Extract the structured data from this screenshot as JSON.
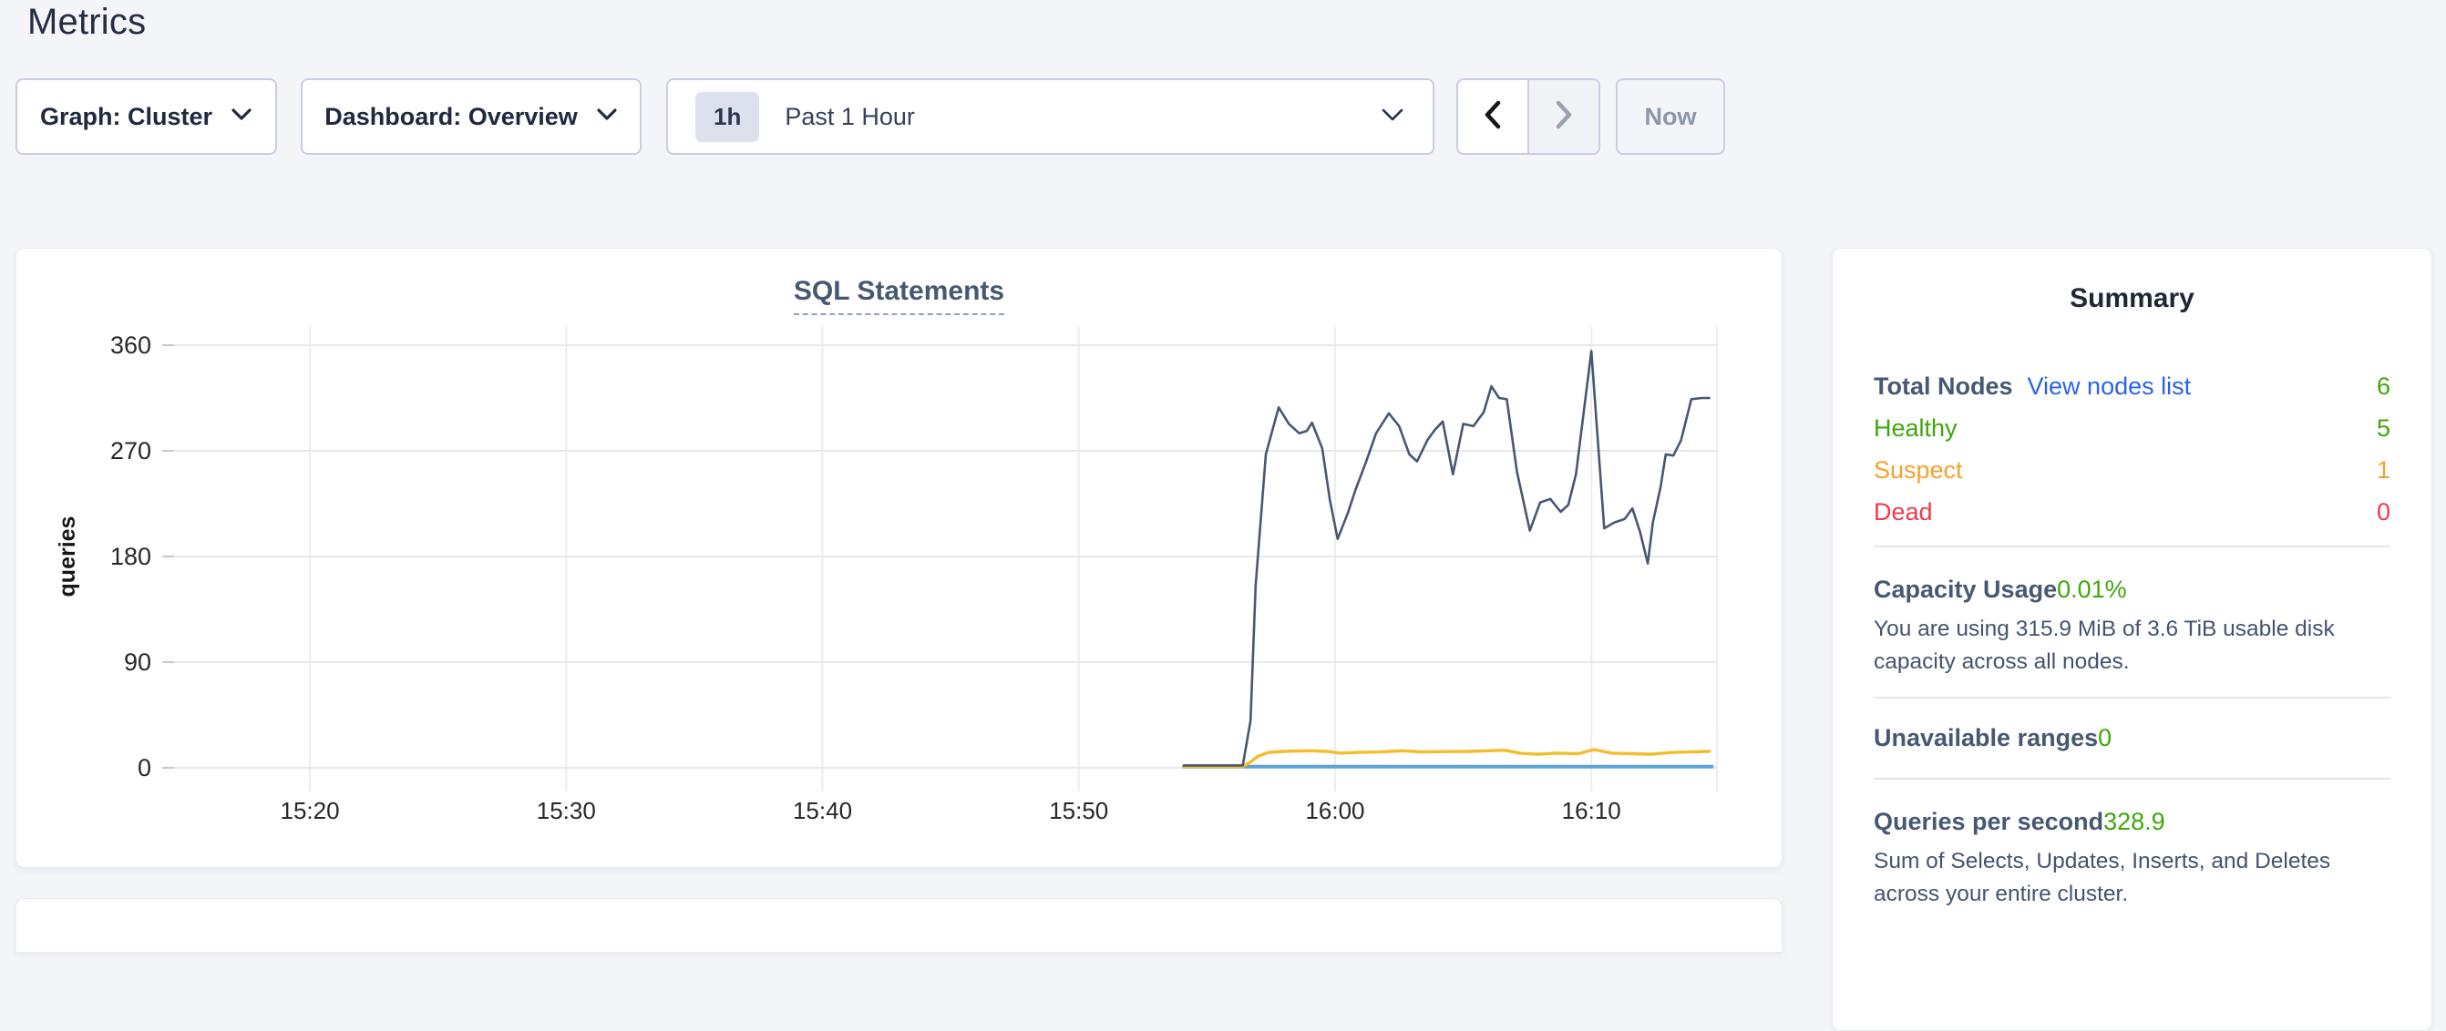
{
  "page": {
    "title": "Metrics"
  },
  "controls": {
    "graph_dropdown": {
      "label": "Graph: Cluster"
    },
    "dashboard_dropdown": {
      "label": "Dashboard: Overview"
    },
    "time_range": {
      "badge": "1h",
      "label": "Past 1 Hour"
    },
    "now_button": {
      "label": "Now"
    }
  },
  "chart_data": {
    "type": "line",
    "title": "SQL Statements",
    "ylabel": "queries",
    "xlabel": "",
    "ylim": [
      0,
      360
    ],
    "yticks": [
      0,
      90,
      180,
      270,
      360
    ],
    "x_domain_minutes_from_1515": [
      -0.3,
      59.9
    ],
    "xticks": [
      {
        "m": 5,
        "label": "15:20"
      },
      {
        "m": 15,
        "label": "15:30"
      },
      {
        "m": 25,
        "label": "15:40"
      },
      {
        "m": 35,
        "label": "15:50"
      },
      {
        "m": 45,
        "label": "16:00"
      },
      {
        "m": 55,
        "label": "16:10"
      }
    ],
    "grid": true,
    "legend": "none",
    "series": [
      {
        "name": "light-blue-flat",
        "color": "#5ca3d7",
        "width": 4,
        "points": [
          [
            39.1,
            1
          ],
          [
            59.7,
            1
          ]
        ]
      },
      {
        "name": "yellow",
        "color": "#f3bd2c",
        "width": 3.4,
        "points": [
          [
            39.1,
            1
          ],
          [
            41.4,
            1
          ],
          [
            41.7,
            5
          ],
          [
            42.0,
            10
          ],
          [
            42.4,
            13
          ],
          [
            43.0,
            14
          ],
          [
            44.0,
            14.5
          ],
          [
            44.7,
            14
          ],
          [
            45.2,
            12.5
          ],
          [
            45.8,
            13
          ],
          [
            46.8,
            13.5
          ],
          [
            47.6,
            14.5
          ],
          [
            48.4,
            13.5
          ],
          [
            49.2,
            13.8
          ],
          [
            50.2,
            14
          ],
          [
            51.0,
            14.5
          ],
          [
            51.6,
            15
          ],
          [
            52.2,
            12.5
          ],
          [
            52.9,
            11.5
          ],
          [
            53.6,
            12.5
          ],
          [
            54.5,
            12
          ],
          [
            55.1,
            15.5
          ],
          [
            55.8,
            12.5
          ],
          [
            56.6,
            12
          ],
          [
            57.3,
            11.5
          ],
          [
            58.1,
            13
          ],
          [
            58.9,
            13.5
          ],
          [
            59.6,
            14
          ]
        ]
      },
      {
        "name": "dark-blue",
        "color": "#475872",
        "width": 2.6,
        "points": [
          [
            39.1,
            2
          ],
          [
            41.4,
            2
          ],
          [
            41.7,
            40
          ],
          [
            41.9,
            155
          ],
          [
            42.3,
            267
          ],
          [
            42.8,
            307
          ],
          [
            43.2,
            293
          ],
          [
            43.6,
            285
          ],
          [
            43.9,
            287
          ],
          [
            44.1,
            294
          ],
          [
            44.5,
            272
          ],
          [
            44.8,
            228
          ],
          [
            45.1,
            195
          ],
          [
            45.5,
            217
          ],
          [
            45.8,
            237
          ],
          [
            46.2,
            260
          ],
          [
            46.6,
            285
          ],
          [
            47.1,
            302
          ],
          [
            47.5,
            291
          ],
          [
            47.9,
            267
          ],
          [
            48.2,
            261
          ],
          [
            48.6,
            279
          ],
          [
            48.9,
            288
          ],
          [
            49.2,
            295
          ],
          [
            49.6,
            250
          ],
          [
            50.0,
            293
          ],
          [
            50.4,
            291
          ],
          [
            50.8,
            303
          ],
          [
            51.1,
            325
          ],
          [
            51.4,
            315
          ],
          [
            51.7,
            314
          ],
          [
            52.1,
            252
          ],
          [
            52.6,
            202
          ],
          [
            53.0,
            226
          ],
          [
            53.4,
            229
          ],
          [
            53.8,
            218
          ],
          [
            54.1,
            224
          ],
          [
            54.4,
            250
          ],
          [
            55.0,
            355
          ],
          [
            55.5,
            204
          ],
          [
            55.9,
            209
          ],
          [
            56.3,
            212
          ],
          [
            56.6,
            221
          ],
          [
            56.9,
            201
          ],
          [
            57.2,
            174
          ],
          [
            57.4,
            209
          ],
          [
            57.7,
            239
          ],
          [
            57.9,
            267
          ],
          [
            58.2,
            266
          ],
          [
            58.5,
            279
          ],
          [
            58.9,
            314
          ],
          [
            59.3,
            315
          ],
          [
            59.6,
            315
          ]
        ]
      }
    ]
  },
  "summary": {
    "title": "Summary",
    "total": {
      "label": "Total Nodes",
      "link": "View nodes list",
      "value": "6"
    },
    "healthy": {
      "label": "Healthy",
      "value": "5"
    },
    "suspect": {
      "label": "Suspect",
      "value": "1"
    },
    "dead": {
      "label": "Dead",
      "value": "0"
    },
    "capacity": {
      "label": "Capacity Usage",
      "value": "0.01%",
      "description": "You are using 315.9 MiB of 3.6 TiB usable disk capacity across all nodes."
    },
    "unavailable": {
      "label": "Unavailable ranges",
      "value": "0"
    },
    "qps": {
      "label": "Queries per second",
      "value": "328.9",
      "description": "Sum of Selects, Updates, Inserts, and Deletes across your entire cluster."
    }
  },
  "colors": {
    "accent_green": "#3fa60b",
    "accent_orange": "#f2a32d",
    "accent_red": "#ee3a4c",
    "link_blue": "#2a63e8",
    "series_dark": "#475872",
    "series_yellow": "#f3bd2c",
    "series_blue": "#5ca3d7"
  }
}
